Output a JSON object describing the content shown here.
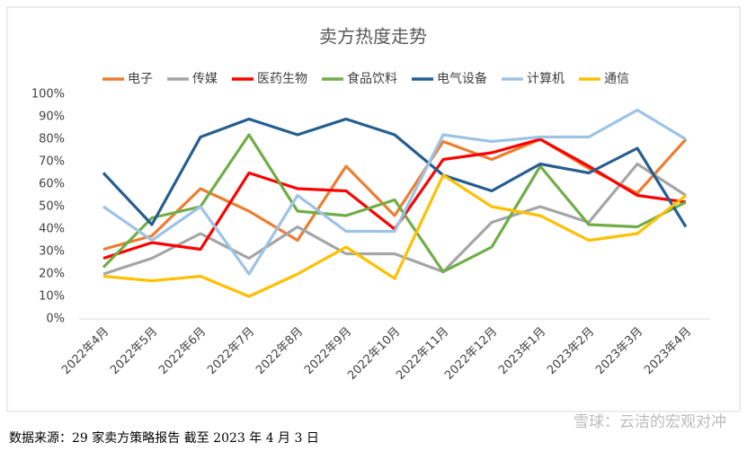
{
  "chart_data": {
    "type": "line",
    "title": "卖方热度走势",
    "categories": [
      "2022年4月",
      "2022年5月",
      "2022年6月",
      "2022年7月",
      "2022年8月",
      "2022年9月",
      "2022年10月",
      "2022年11月",
      "2022年12月",
      "2023年1月",
      "2023年2月",
      "2023年3月",
      "2023年4月"
    ],
    "series": [
      {
        "name": "电子",
        "color": "#ed7d31",
        "values": [
          31,
          37,
          58,
          48,
          35,
          68,
          46,
          79,
          71,
          80,
          67,
          56,
          80
        ]
      },
      {
        "name": "传媒",
        "color": "#a5a5a5",
        "values": [
          20,
          27,
          38,
          27,
          41,
          29,
          29,
          21,
          43,
          50,
          43,
          69,
          55
        ]
      },
      {
        "name": "医药生物",
        "color": "#ff0000",
        "values": [
          27,
          34,
          31,
          65,
          58,
          57,
          40,
          71,
          74,
          80,
          68,
          55,
          52
        ]
      },
      {
        "name": "食品饮料",
        "color": "#70ad47",
        "values": [
          23,
          45,
          50,
          82,
          48,
          46,
          53,
          21,
          32,
          68,
          42,
          41,
          52
        ]
      },
      {
        "name": "电气设备",
        "color": "#255e91",
        "values": [
          65,
          42,
          81,
          89,
          82,
          89,
          82,
          64,
          57,
          69,
          65,
          76,
          41
        ]
      },
      {
        "name": "计算机",
        "color": "#9dc3e6",
        "values": [
          50,
          35,
          50,
          20,
          55,
          39,
          39,
          82,
          79,
          81,
          81,
          93,
          80
        ]
      },
      {
        "name": "通信",
        "color": "#ffc000",
        "values": [
          19,
          17,
          19,
          10,
          20,
          32,
          18,
          64,
          50,
          46,
          35,
          38,
          55
        ]
      }
    ],
    "ylim": [
      0,
      100
    ],
    "yticks": [
      {
        "value": 0,
        "label": "0%"
      },
      {
        "value": 10,
        "label": "10%"
      },
      {
        "value": 20,
        "label": "20%"
      },
      {
        "value": 30,
        "label": "30%"
      },
      {
        "value": 40,
        "label": "40%"
      },
      {
        "value": 50,
        "label": "50%"
      },
      {
        "value": 60,
        "label": "60%"
      },
      {
        "value": 70,
        "label": "70%"
      },
      {
        "value": 80,
        "label": "80%"
      },
      {
        "value": 90,
        "label": "90%"
      },
      {
        "value": 100,
        "label": "100%"
      }
    ],
    "source": "数据来源：29 家卖方策略报告  截至 2023 年 4 月 3 日",
    "watermark": "雪球：云洁的宏观对冲"
  }
}
